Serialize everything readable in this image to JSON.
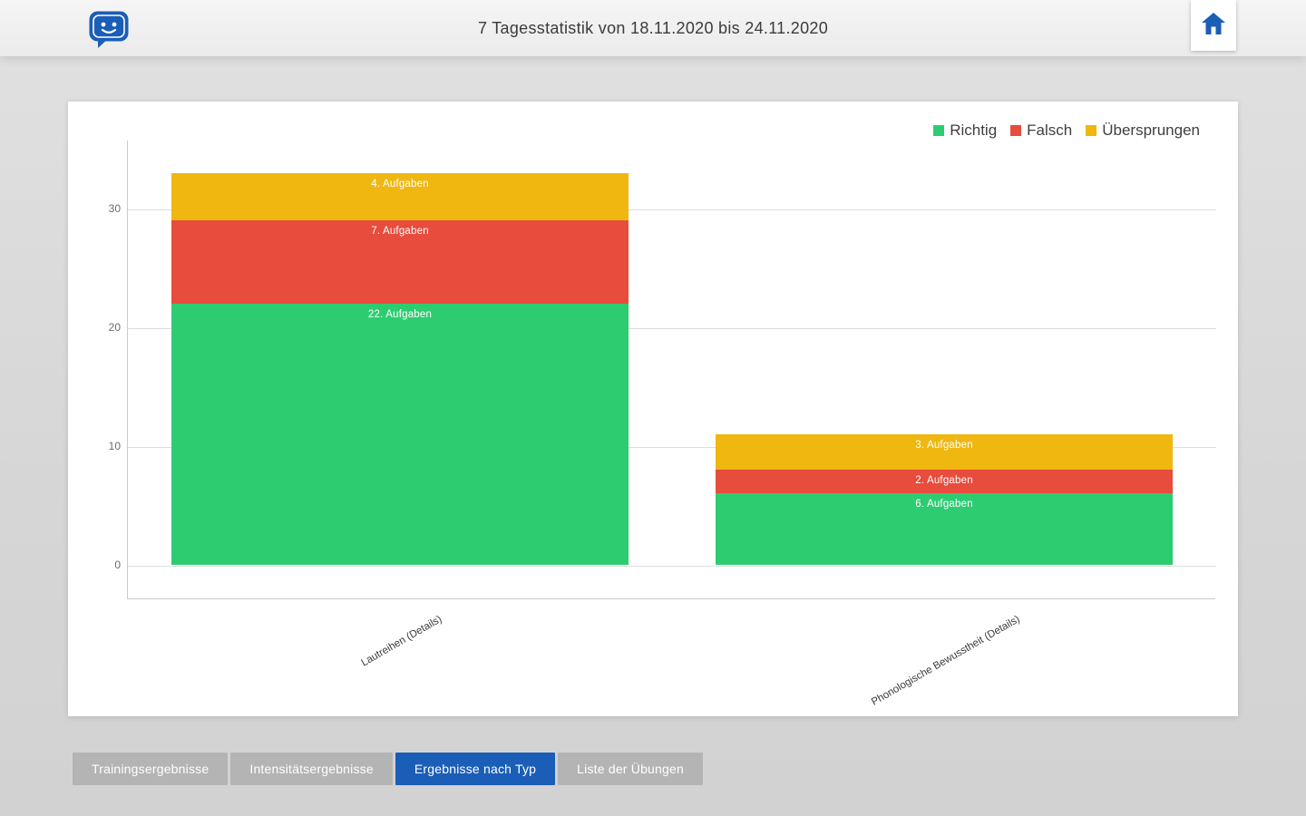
{
  "header": {
    "title": "7 Tagesstatistik von 18.11.2020 bis 24.11.2020",
    "logo_icon": "chat-bubble-face-icon",
    "home_icon": "home-icon"
  },
  "colors": {
    "accent_blue": "#1a5eb7",
    "tab_inactive": "#b4b4b4",
    "richtig_green": "#2ecc71",
    "falsch_red": "#e74c3c",
    "uebersprungen_yellow": "#efb710"
  },
  "chart_data": {
    "type": "bar",
    "stacked": true,
    "title": "",
    "categories": [
      "Lautreihen (Details)",
      "Phonologische Bewusstheit (Details)"
    ],
    "series": [
      {
        "name": "Richtig",
        "color": "#2ecc71",
        "values": [
          22,
          6
        ]
      },
      {
        "name": "Falsch",
        "color": "#e74c3c",
        "values": [
          7,
          2
        ]
      },
      {
        "name": "Übersprungen",
        "color": "#efb710",
        "values": [
          4,
          3
        ]
      }
    ],
    "segment_labels": [
      [
        "22. Aufgaben",
        "7. Aufgaben",
        "4. Aufgaben"
      ],
      [
        "6. Aufgaben",
        "2. Aufgaben",
        "3. Aufgaben"
      ]
    ],
    "totals": [
      33,
      11
    ],
    "y_ticks": [
      0,
      10,
      20,
      30
    ],
    "ylim": [
      0,
      35.8
    ],
    "grid": true,
    "legend_position": "top-right"
  },
  "tabs": [
    {
      "label": "Trainingsergebnisse",
      "active": false
    },
    {
      "label": "Intensitätsergebnisse",
      "active": false
    },
    {
      "label": "Ergebnisse nach Typ",
      "active": true
    },
    {
      "label": "Liste der Übungen",
      "active": false
    }
  ]
}
